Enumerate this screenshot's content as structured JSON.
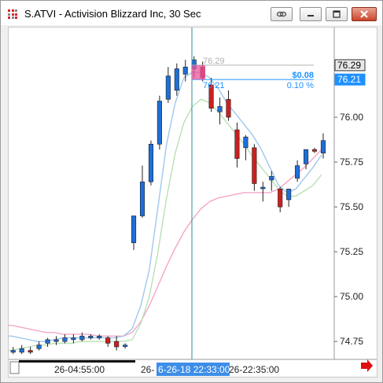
{
  "window": {
    "title": "S.ATVI - Activision Blizzard Inc, 30 Sec",
    "buttons": [
      {
        "name": "link-button",
        "icon": "link-icon"
      },
      {
        "name": "minimize-button",
        "icon": "minimize-icon"
      },
      {
        "name": "maximize-button",
        "icon": "maximize-icon"
      },
      {
        "name": "close-button",
        "icon": "close-icon"
      }
    ]
  },
  "colors": {
    "up_candle": "#1e6fd9",
    "down_candle": "#cc1f1f",
    "ma_fast": "#9ec8ee",
    "ma_mid": "#b9e0b4",
    "ma_slow": "#f3a6c8",
    "crosshair": "#2a8f9a",
    "measure": "#1e90ff",
    "time_highlight": "#3d8ee8"
  },
  "price_axis": {
    "ticks": [
      "76.00",
      "75.75",
      "75.50",
      "75.25",
      "75.00",
      "74.75"
    ],
    "badges": [
      {
        "label": "76.29",
        "value": 76.29,
        "kind": "dark"
      },
      {
        "label": "76.21",
        "value": 76.21,
        "kind": "blue"
      }
    ]
  },
  "time_axis": {
    "labels": [
      "26-04:55:00",
      "26-",
      "26-22:35:00"
    ],
    "highlight": "6-26-18 22:33:00"
  },
  "measure": {
    "top_label": "76.29",
    "bottom_label": "76.21",
    "delta_label": "$0.08",
    "pct_label": "0.10 %"
  },
  "chart_data": {
    "type": "candlestick",
    "ylim": [
      74.65,
      76.5
    ],
    "yticks": [
      76.0,
      75.75,
      75.5,
      75.25,
      75.0,
      74.75
    ],
    "candles": [
      {
        "o": 74.69,
        "h": 74.72,
        "l": 74.68,
        "c": 74.7
      },
      {
        "o": 74.69,
        "h": 74.73,
        "l": 74.68,
        "c": 74.71
      },
      {
        "o": 74.7,
        "h": 74.72,
        "l": 74.68,
        "c": 74.69
      },
      {
        "o": 74.71,
        "h": 74.75,
        "l": 74.7,
        "c": 74.73
      },
      {
        "o": 74.74,
        "h": 74.77,
        "l": 74.72,
        "c": 74.76
      },
      {
        "o": 74.75,
        "h": 74.78,
        "l": 74.73,
        "c": 74.76
      },
      {
        "o": 74.75,
        "h": 74.79,
        "l": 74.74,
        "c": 74.77
      },
      {
        "o": 74.76,
        "h": 74.79,
        "l": 74.74,
        "c": 74.77
      },
      {
        "o": 74.76,
        "h": 74.8,
        "l": 74.75,
        "c": 74.78
      },
      {
        "o": 74.77,
        "h": 74.79,
        "l": 74.76,
        "c": 74.78
      },
      {
        "o": 74.77,
        "h": 74.79,
        "l": 74.76,
        "c": 74.78
      },
      {
        "o": 74.77,
        "h": 74.78,
        "l": 74.72,
        "c": 74.74
      },
      {
        "o": 74.75,
        "h": 74.78,
        "l": 74.7,
        "c": 74.72
      },
      {
        "o": 74.73,
        "h": 74.74,
        "l": 74.71,
        "c": 74.73
      },
      {
        "o": 75.3,
        "h": 75.45,
        "l": 75.26,
        "c": 75.45
      },
      {
        "o": 75.45,
        "h": 75.73,
        "l": 75.44,
        "c": 75.64
      },
      {
        "o": 75.64,
        "h": 75.87,
        "l": 75.62,
        "c": 75.85
      },
      {
        "o": 75.85,
        "h": 76.12,
        "l": 75.82,
        "c": 76.09
      },
      {
        "o": 76.1,
        "h": 76.28,
        "l": 76.08,
        "c": 76.23
      },
      {
        "o": 76.15,
        "h": 76.3,
        "l": 76.12,
        "c": 76.27
      },
      {
        "o": 76.24,
        "h": 76.32,
        "l": 76.2,
        "c": 76.28
      },
      {
        "o": 76.27,
        "h": 76.34,
        "l": 76.22,
        "c": 76.32
      },
      {
        "o": 76.28,
        "h": 76.31,
        "l": 76.2,
        "c": 76.22
      },
      {
        "o": 76.18,
        "h": 76.22,
        "l": 76.03,
        "c": 76.05
      },
      {
        "o": 76.03,
        "h": 76.11,
        "l": 75.96,
        "c": 76.06
      },
      {
        "o": 76.1,
        "h": 76.15,
        "l": 75.98,
        "c": 76.0
      },
      {
        "o": 75.93,
        "h": 75.97,
        "l": 75.72,
        "c": 75.77
      },
      {
        "o": 75.83,
        "h": 75.9,
        "l": 75.76,
        "c": 75.89
      },
      {
        "o": 75.83,
        "h": 75.85,
        "l": 75.59,
        "c": 75.63
      },
      {
        "o": 75.61,
        "h": 75.64,
        "l": 75.53,
        "c": 75.61
      },
      {
        "o": 75.65,
        "h": 75.7,
        "l": 75.59,
        "c": 75.67
      },
      {
        "o": 75.6,
        "h": 75.61,
        "l": 75.47,
        "c": 75.5
      },
      {
        "o": 75.54,
        "h": 75.6,
        "l": 75.5,
        "c": 75.6
      },
      {
        "o": 75.66,
        "h": 75.76,
        "l": 75.64,
        "c": 75.73
      },
      {
        "o": 75.74,
        "h": 75.82,
        "l": 75.71,
        "c": 75.82
      },
      {
        "o": 75.82,
        "h": 75.83,
        "l": 75.8,
        "c": 75.81
      },
      {
        "o": 75.8,
        "h": 75.91,
        "l": 75.77,
        "c": 75.87
      }
    ],
    "ma_fast": [
      74.78,
      74.77,
      74.76,
      74.75,
      74.75,
      74.76,
      74.77,
      74.77,
      74.77,
      74.77,
      74.77,
      74.77,
      74.77,
      74.78,
      74.82,
      74.95,
      75.15,
      75.5,
      75.85,
      76.08,
      76.22,
      76.25,
      76.25,
      76.22,
      76.16,
      76.08,
      76.02,
      75.96,
      75.9,
      75.82,
      75.72,
      75.62,
      75.58,
      75.6,
      75.66,
      75.72,
      75.79
    ],
    "ma_mid": [
      74.7,
      74.71,
      74.72,
      74.73,
      74.73,
      74.74,
      74.74,
      74.74,
      74.75,
      74.75,
      74.75,
      74.75,
      74.75,
      74.75,
      74.76,
      74.85,
      75.0,
      75.25,
      75.55,
      75.8,
      75.97,
      76.06,
      76.1,
      76.08,
      76.03,
      75.97,
      75.91,
      75.85,
      75.78,
      75.72,
      75.66,
      75.6,
      75.56,
      75.56,
      75.59,
      75.62,
      75.68
    ],
    "ma_slow": [
      74.84,
      74.83,
      74.82,
      74.81,
      74.8,
      74.8,
      74.79,
      74.79,
      74.79,
      74.79,
      74.78,
      74.78,
      74.78,
      74.78,
      74.8,
      74.86,
      74.95,
      75.06,
      75.17,
      75.27,
      75.36,
      75.43,
      75.49,
      75.53,
      75.55,
      75.56,
      75.57,
      75.58,
      75.58,
      75.58,
      75.58,
      75.6,
      75.64,
      75.68,
      75.72,
      75.77,
      75.82
    ]
  }
}
